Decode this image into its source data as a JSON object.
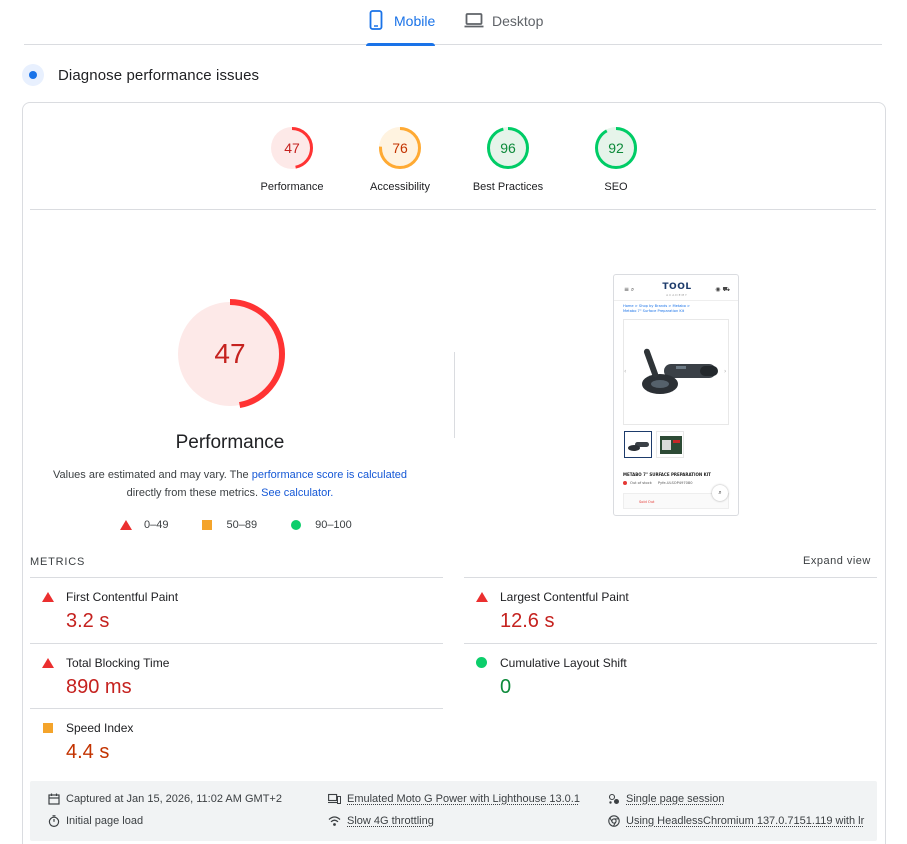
{
  "tabs": [
    {
      "label": "Mobile",
      "icon": "smartphone-icon",
      "active": true
    },
    {
      "label": "Desktop",
      "icon": "laptop-icon",
      "active": false
    }
  ],
  "diagnose": {
    "title": "Diagnose performance issues",
    "icon": "diagnose-icon"
  },
  "scores": [
    {
      "label": "Performance",
      "value": "47",
      "score": 47,
      "color": "#ff3333",
      "bg": "#fde9e8",
      "text_color": "#c5221f"
    },
    {
      "label": "Accessibility",
      "value": "76",
      "score": 76,
      "color": "#ffaa33",
      "bg": "#fff3e0",
      "text_color": "#c33300"
    },
    {
      "label": "Best Practices",
      "value": "96",
      "score": 96,
      "color": "#00cc66",
      "bg": "#e6f4ea",
      "text_color": "#0d8a3a"
    },
    {
      "label": "SEO",
      "value": "92",
      "score": 92,
      "color": "#00cc66",
      "bg": "#e6f4ea",
      "text_color": "#0d8a3a"
    }
  ],
  "performance": {
    "score": "47",
    "score_value": 47,
    "title": "Performance",
    "note_prefix": "Values are estimated and may vary. The ",
    "note_link1": "performance score is calculated",
    "note_middle": "directly from these metrics. ",
    "note_link2": "See calculator."
  },
  "legend": [
    {
      "label": "0–49",
      "shape": "triangle",
      "color": "#eb2f2f"
    },
    {
      "label": "50–89",
      "shape": "square",
      "color": "#f4a42b"
    },
    {
      "label": "90–100",
      "shape": "circle",
      "color": "#0cce6b"
    }
  ],
  "screenshot": {
    "logo": "TOOL",
    "logo_sub": "ACADEMY",
    "menu_glyph": "≡ ⌕",
    "actions_glyph": "◉ ⛟",
    "breadcrumb_links": "Home > Shop by Brands > Metabo >",
    "breadcrumb_page": "Metabo 7\" Surface Preparation Kit",
    "product_name": "METABO 7\" SURFACE PREPARATION KIT",
    "stock_label": "Out of stock",
    "sku": "Pyfe-ULSOP497080",
    "sold_out": "Sold Out",
    "arrow_left": "‹",
    "arrow_right": "›",
    "zoom_glyph": "⌕"
  },
  "metrics": {
    "title": "METRICS",
    "expand_label": "Expand view",
    "items": [
      {
        "name": "First Contentful Paint",
        "value": "3.2 s",
        "rating": "fail"
      },
      {
        "name": "Largest Contentful Paint",
        "value": "12.6 s",
        "rating": "fail"
      },
      {
        "name": "Total Blocking Time",
        "value": "890 ms",
        "rating": "fail"
      },
      {
        "name": "Cumulative Layout Shift",
        "value": "0",
        "rating": "pass"
      },
      {
        "name": "Speed Index",
        "value": "4.4 s",
        "rating": "average"
      }
    ]
  },
  "info": {
    "captured": "Captured at Jan 15, 2026, 11:02 AM GMT+2",
    "initial_load": "Initial page load",
    "device": "Emulated Moto G Power with Lighthouse 13.0.1",
    "throttling": "Slow 4G throttling",
    "session": "Single page session",
    "browser": "Using HeadlessChromium 137.0.7151.119 with lr"
  }
}
